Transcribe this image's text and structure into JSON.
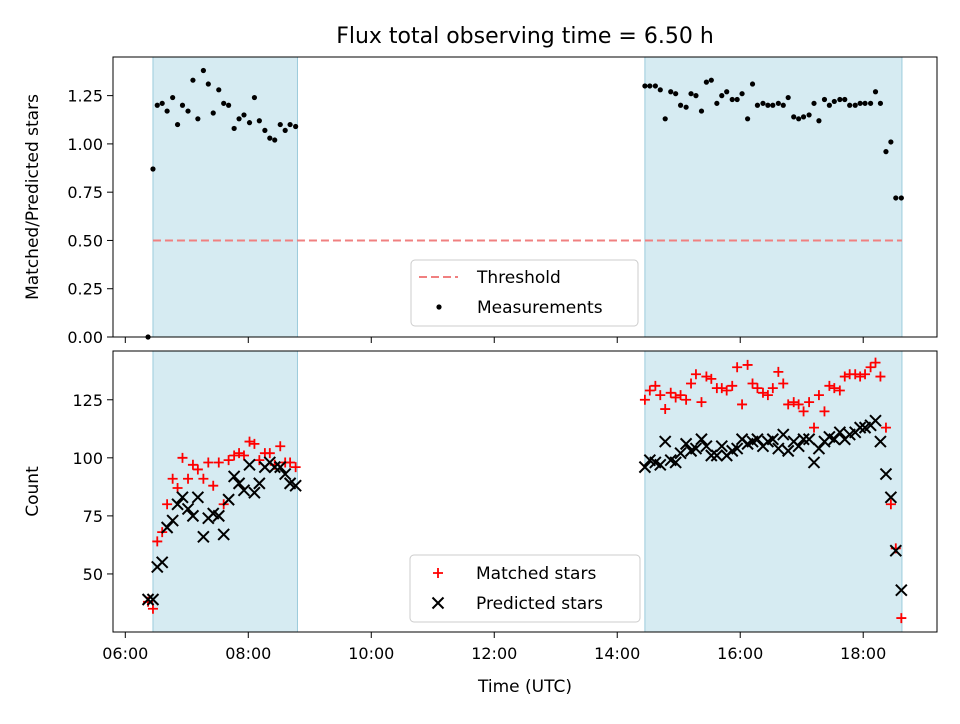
{
  "figure": {
    "title": "Flux total observing time = 6.50 h",
    "xlabel": "Time (UTC)",
    "x_ticks": [
      "06:00",
      "08:00",
      "10:00",
      "12:00",
      "14:00",
      "16:00",
      "18:00"
    ]
  },
  "chart_data": [
    {
      "type": "scatter",
      "ylabel": "Matched/Predicted stars",
      "xlim": [
        5.8,
        19.2
      ],
      "ylim": [
        0,
        1.45
      ],
      "y_ticks": [
        "0.00",
        "0.25",
        "0.50",
        "0.75",
        "1.00",
        "1.25"
      ],
      "y_tick_values": [
        0,
        0.25,
        0.5,
        0.75,
        1.0,
        1.25
      ],
      "shaded_intervals": [
        [
          6.45,
          8.8
        ],
        [
          14.45,
          18.63
        ]
      ],
      "threshold": {
        "name": "Threshold",
        "value": 0.5,
        "x_range": [
          6.45,
          18.63
        ],
        "color": "#f08080"
      },
      "legend": {
        "placement": "lower-center",
        "entries": [
          "Threshold",
          "Measurements"
        ]
      },
      "series": [
        {
          "name": "Measurements",
          "color": "#000000",
          "x": [
            6.37,
            6.45,
            6.52,
            6.6,
            6.68,
            6.77,
            6.85,
            6.93,
            7.02,
            7.1,
            7.18,
            7.27,
            7.35,
            7.43,
            7.52,
            7.6,
            7.68,
            7.77,
            7.85,
            7.93,
            8.02,
            8.1,
            8.18,
            8.27,
            8.35,
            8.43,
            8.52,
            8.6,
            8.68,
            8.77,
            14.45,
            14.53,
            14.62,
            14.7,
            14.78,
            14.87,
            14.95,
            15.03,
            15.12,
            15.2,
            15.28,
            15.37,
            15.45,
            15.53,
            15.62,
            15.7,
            15.78,
            15.87,
            15.95,
            16.03,
            16.12,
            16.2,
            16.28,
            16.37,
            16.45,
            16.53,
            16.62,
            16.7,
            16.78,
            16.87,
            16.95,
            17.03,
            17.12,
            17.2,
            17.28,
            17.37,
            17.45,
            17.53,
            17.62,
            17.7,
            17.78,
            17.87,
            17.95,
            18.03,
            18.12,
            18.2,
            18.28,
            18.37,
            18.45,
            18.53,
            18.62
          ],
          "y": [
            0.0,
            0.87,
            1.2,
            1.21,
            1.17,
            1.24,
            1.1,
            1.2,
            1.17,
            1.33,
            1.13,
            1.38,
            1.31,
            1.16,
            1.28,
            1.21,
            1.2,
            1.08,
            1.13,
            1.15,
            1.11,
            1.24,
            1.12,
            1.07,
            1.03,
            1.02,
            1.1,
            1.07,
            1.1,
            1.09,
            1.3,
            1.3,
            1.3,
            1.28,
            1.13,
            1.27,
            1.26,
            1.2,
            1.19,
            1.26,
            1.25,
            1.17,
            1.32,
            1.33,
            1.21,
            1.25,
            1.27,
            1.23,
            1.23,
            1.26,
            1.13,
            1.31,
            1.2,
            1.21,
            1.2,
            1.2,
            1.21,
            1.2,
            1.24,
            1.14,
            1.13,
            1.14,
            1.15,
            1.21,
            1.12,
            1.23,
            1.2,
            1.22,
            1.23,
            1.23,
            1.2,
            1.2,
            1.21,
            1.21,
            1.21,
            1.27,
            1.21,
            0.96,
            1.01,
            0.72,
            0.72
          ]
        }
      ]
    },
    {
      "type": "scatter",
      "ylabel": "Count",
      "xlim": [
        5.8,
        19.2
      ],
      "ylim": [
        25,
        146
      ],
      "y_ticks": [
        "50",
        "75",
        "100",
        "125"
      ],
      "y_tick_values": [
        50,
        75,
        100,
        125
      ],
      "shaded_intervals": [
        [
          6.45,
          8.8
        ],
        [
          14.45,
          18.63
        ]
      ],
      "legend": {
        "placement": "lower-center",
        "entries": [
          "Matched stars",
          "Predicted stars"
        ]
      },
      "series": [
        {
          "name": "Matched stars",
          "marker": "plus",
          "color": "#ff0000",
          "x": [
            6.37,
            6.45,
            6.52,
            6.6,
            6.68,
            6.77,
            6.85,
            6.93,
            7.02,
            7.1,
            7.18,
            7.27,
            7.35,
            7.43,
            7.52,
            7.6,
            7.68,
            7.77,
            7.85,
            7.93,
            8.02,
            8.1,
            8.18,
            8.27,
            8.35,
            8.43,
            8.52,
            8.6,
            8.68,
            8.77,
            14.45,
            14.53,
            14.62,
            14.7,
            14.78,
            14.87,
            14.95,
            15.03,
            15.12,
            15.2,
            15.28,
            15.37,
            15.45,
            15.53,
            15.62,
            15.7,
            15.78,
            15.87,
            15.95,
            16.03,
            16.12,
            16.2,
            16.28,
            16.37,
            16.45,
            16.53,
            16.62,
            16.7,
            16.78,
            16.87,
            16.95,
            17.03,
            17.12,
            17.2,
            17.28,
            17.37,
            17.45,
            17.53,
            17.62,
            17.7,
            17.78,
            17.87,
            17.95,
            18.03,
            18.12,
            18.2,
            18.28,
            18.37,
            18.45,
            18.53,
            18.62
          ],
          "y": [
            38,
            35,
            64,
            68,
            80,
            91,
            87,
            100,
            91,
            97,
            95,
            91,
            98,
            88,
            98,
            80,
            99,
            101,
            102,
            101,
            107,
            106,
            99,
            102,
            102,
            97,
            105,
            98,
            98,
            96,
            125,
            129,
            131,
            127,
            121,
            128,
            126,
            127,
            125,
            132,
            136,
            124,
            135,
            134,
            130,
            130,
            129,
            131,
            139,
            123,
            140,
            132,
            130,
            128,
            127,
            130,
            137,
            132,
            123,
            124,
            123,
            120,
            124,
            113,
            127,
            120,
            131,
            130,
            129,
            135,
            136,
            136,
            135,
            136,
            139,
            141,
            135,
            113,
            80,
            61,
            31
          ]
        },
        {
          "name": "Predicted stars",
          "marker": "x",
          "color": "#000000",
          "x": [
            6.37,
            6.45,
            6.52,
            6.6,
            6.68,
            6.77,
            6.85,
            6.93,
            7.02,
            7.1,
            7.18,
            7.27,
            7.35,
            7.43,
            7.52,
            7.6,
            7.68,
            7.77,
            7.85,
            7.93,
            8.02,
            8.1,
            8.18,
            8.27,
            8.35,
            8.43,
            8.52,
            8.6,
            8.68,
            8.77,
            14.45,
            14.53,
            14.62,
            14.7,
            14.78,
            14.87,
            14.95,
            15.03,
            15.12,
            15.2,
            15.28,
            15.37,
            15.45,
            15.53,
            15.62,
            15.7,
            15.78,
            15.87,
            15.95,
            16.03,
            16.12,
            16.2,
            16.28,
            16.37,
            16.45,
            16.53,
            16.62,
            16.7,
            16.78,
            16.87,
            16.95,
            17.03,
            17.12,
            17.2,
            17.28,
            17.37,
            17.45,
            17.53,
            17.62,
            17.7,
            17.78,
            17.87,
            17.95,
            18.03,
            18.12,
            18.2,
            18.28,
            18.37,
            18.45,
            18.53,
            18.62
          ],
          "y": [
            39,
            39,
            53,
            55,
            70,
            73,
            80,
            83,
            78,
            75,
            83,
            66,
            74,
            76,
            75,
            67,
            82,
            92,
            89,
            86,
            97,
            85,
            89,
            96,
            98,
            96,
            96,
            93,
            89,
            88,
            96,
            99,
            98,
            97,
            107,
            99,
            98,
            102,
            106,
            103,
            104,
            108,
            105,
            101,
            101,
            105,
            101,
            103,
            104,
            108,
            106,
            107,
            108,
            105,
            107,
            108,
            104,
            110,
            103,
            107,
            105,
            108,
            108,
            98,
            104,
            107,
            109,
            108,
            111,
            108,
            110,
            111,
            113,
            113,
            114,
            116,
            107,
            93,
            83,
            60,
            43
          ]
        }
      ]
    }
  ]
}
